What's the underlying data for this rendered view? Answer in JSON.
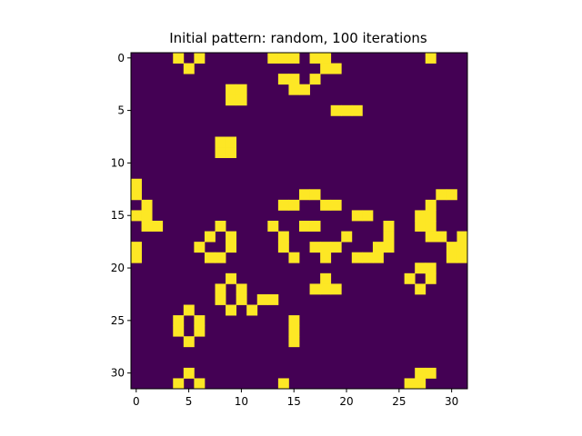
{
  "chart_data": {
    "type": "heatmap",
    "title": "Initial pattern: random, 100 iterations",
    "xlabel": "",
    "ylabel": "",
    "rows": 32,
    "cols": 32,
    "xlim": [
      -0.5,
      31.5
    ],
    "ylim": [
      31.5,
      -0.5
    ],
    "xticks": [
      0,
      5,
      10,
      15,
      20,
      25,
      30
    ],
    "yticks": [
      0,
      5,
      10,
      15,
      20,
      25,
      30
    ],
    "grid": false,
    "colormap": "viridis",
    "colors": {
      "dead": "#440154",
      "alive": "#fde725"
    },
    "alive_cells": [
      [
        0,
        4
      ],
      [
        0,
        6
      ],
      [
        0,
        13
      ],
      [
        0,
        14
      ],
      [
        0,
        15
      ],
      [
        0,
        17
      ],
      [
        0,
        18
      ],
      [
        0,
        28
      ],
      [
        1,
        5
      ],
      [
        1,
        18
      ],
      [
        1,
        19
      ],
      [
        2,
        14
      ],
      [
        2,
        15
      ],
      [
        2,
        17
      ],
      [
        3,
        9
      ],
      [
        3,
        10
      ],
      [
        3,
        15
      ],
      [
        3,
        16
      ],
      [
        4,
        9
      ],
      [
        4,
        10
      ],
      [
        5,
        19
      ],
      [
        5,
        20
      ],
      [
        5,
        21
      ],
      [
        8,
        8
      ],
      [
        8,
        9
      ],
      [
        9,
        8
      ],
      [
        9,
        9
      ],
      [
        12,
        0
      ],
      [
        13,
        0
      ],
      [
        13,
        16
      ],
      [
        13,
        17
      ],
      [
        13,
        29
      ],
      [
        13,
        30
      ],
      [
        14,
        1
      ],
      [
        14,
        14
      ],
      [
        14,
        15
      ],
      [
        14,
        18
      ],
      [
        14,
        19
      ],
      [
        14,
        28
      ],
      [
        15,
        0
      ],
      [
        15,
        1
      ],
      [
        15,
        21
      ],
      [
        15,
        22
      ],
      [
        15,
        27
      ],
      [
        15,
        28
      ],
      [
        16,
        1
      ],
      [
        16,
        2
      ],
      [
        16,
        8
      ],
      [
        16,
        13
      ],
      [
        16,
        16
      ],
      [
        16,
        17
      ],
      [
        16,
        24
      ],
      [
        16,
        27
      ],
      [
        16,
        28
      ],
      [
        17,
        7
      ],
      [
        17,
        9
      ],
      [
        17,
        14
      ],
      [
        17,
        20
      ],
      [
        17,
        24
      ],
      [
        17,
        28
      ],
      [
        17,
        29
      ],
      [
        17,
        31
      ],
      [
        18,
        0
      ],
      [
        18,
        6
      ],
      [
        18,
        9
      ],
      [
        18,
        14
      ],
      [
        18,
        17
      ],
      [
        18,
        18
      ],
      [
        18,
        19
      ],
      [
        18,
        23
      ],
      [
        18,
        24
      ],
      [
        18,
        30
      ],
      [
        18,
        31
      ],
      [
        19,
        0
      ],
      [
        19,
        7
      ],
      [
        19,
        8
      ],
      [
        19,
        15
      ],
      [
        19,
        18
      ],
      [
        19,
        21
      ],
      [
        19,
        22
      ],
      [
        19,
        23
      ],
      [
        19,
        30
      ],
      [
        19,
        31
      ],
      [
        20,
        27
      ],
      [
        20,
        28
      ],
      [
        21,
        9
      ],
      [
        21,
        18
      ],
      [
        21,
        26
      ],
      [
        21,
        28
      ],
      [
        22,
        8
      ],
      [
        22,
        10
      ],
      [
        22,
        17
      ],
      [
        22,
        18
      ],
      [
        22,
        19
      ],
      [
        22,
        27
      ],
      [
        23,
        8
      ],
      [
        23,
        10
      ],
      [
        23,
        12
      ],
      [
        23,
        13
      ],
      [
        24,
        9
      ],
      [
        24,
        11
      ],
      [
        24,
        5
      ],
      [
        25,
        4
      ],
      [
        25,
        6
      ],
      [
        25,
        15
      ],
      [
        26,
        4
      ],
      [
        26,
        6
      ],
      [
        26,
        15
      ],
      [
        27,
        5
      ],
      [
        27,
        15
      ],
      [
        30,
        5
      ],
      [
        30,
        27
      ],
      [
        30,
        28
      ],
      [
        31,
        4
      ],
      [
        31,
        6
      ],
      [
        31,
        14
      ],
      [
        31,
        26
      ],
      [
        31,
        27
      ]
    ]
  }
}
